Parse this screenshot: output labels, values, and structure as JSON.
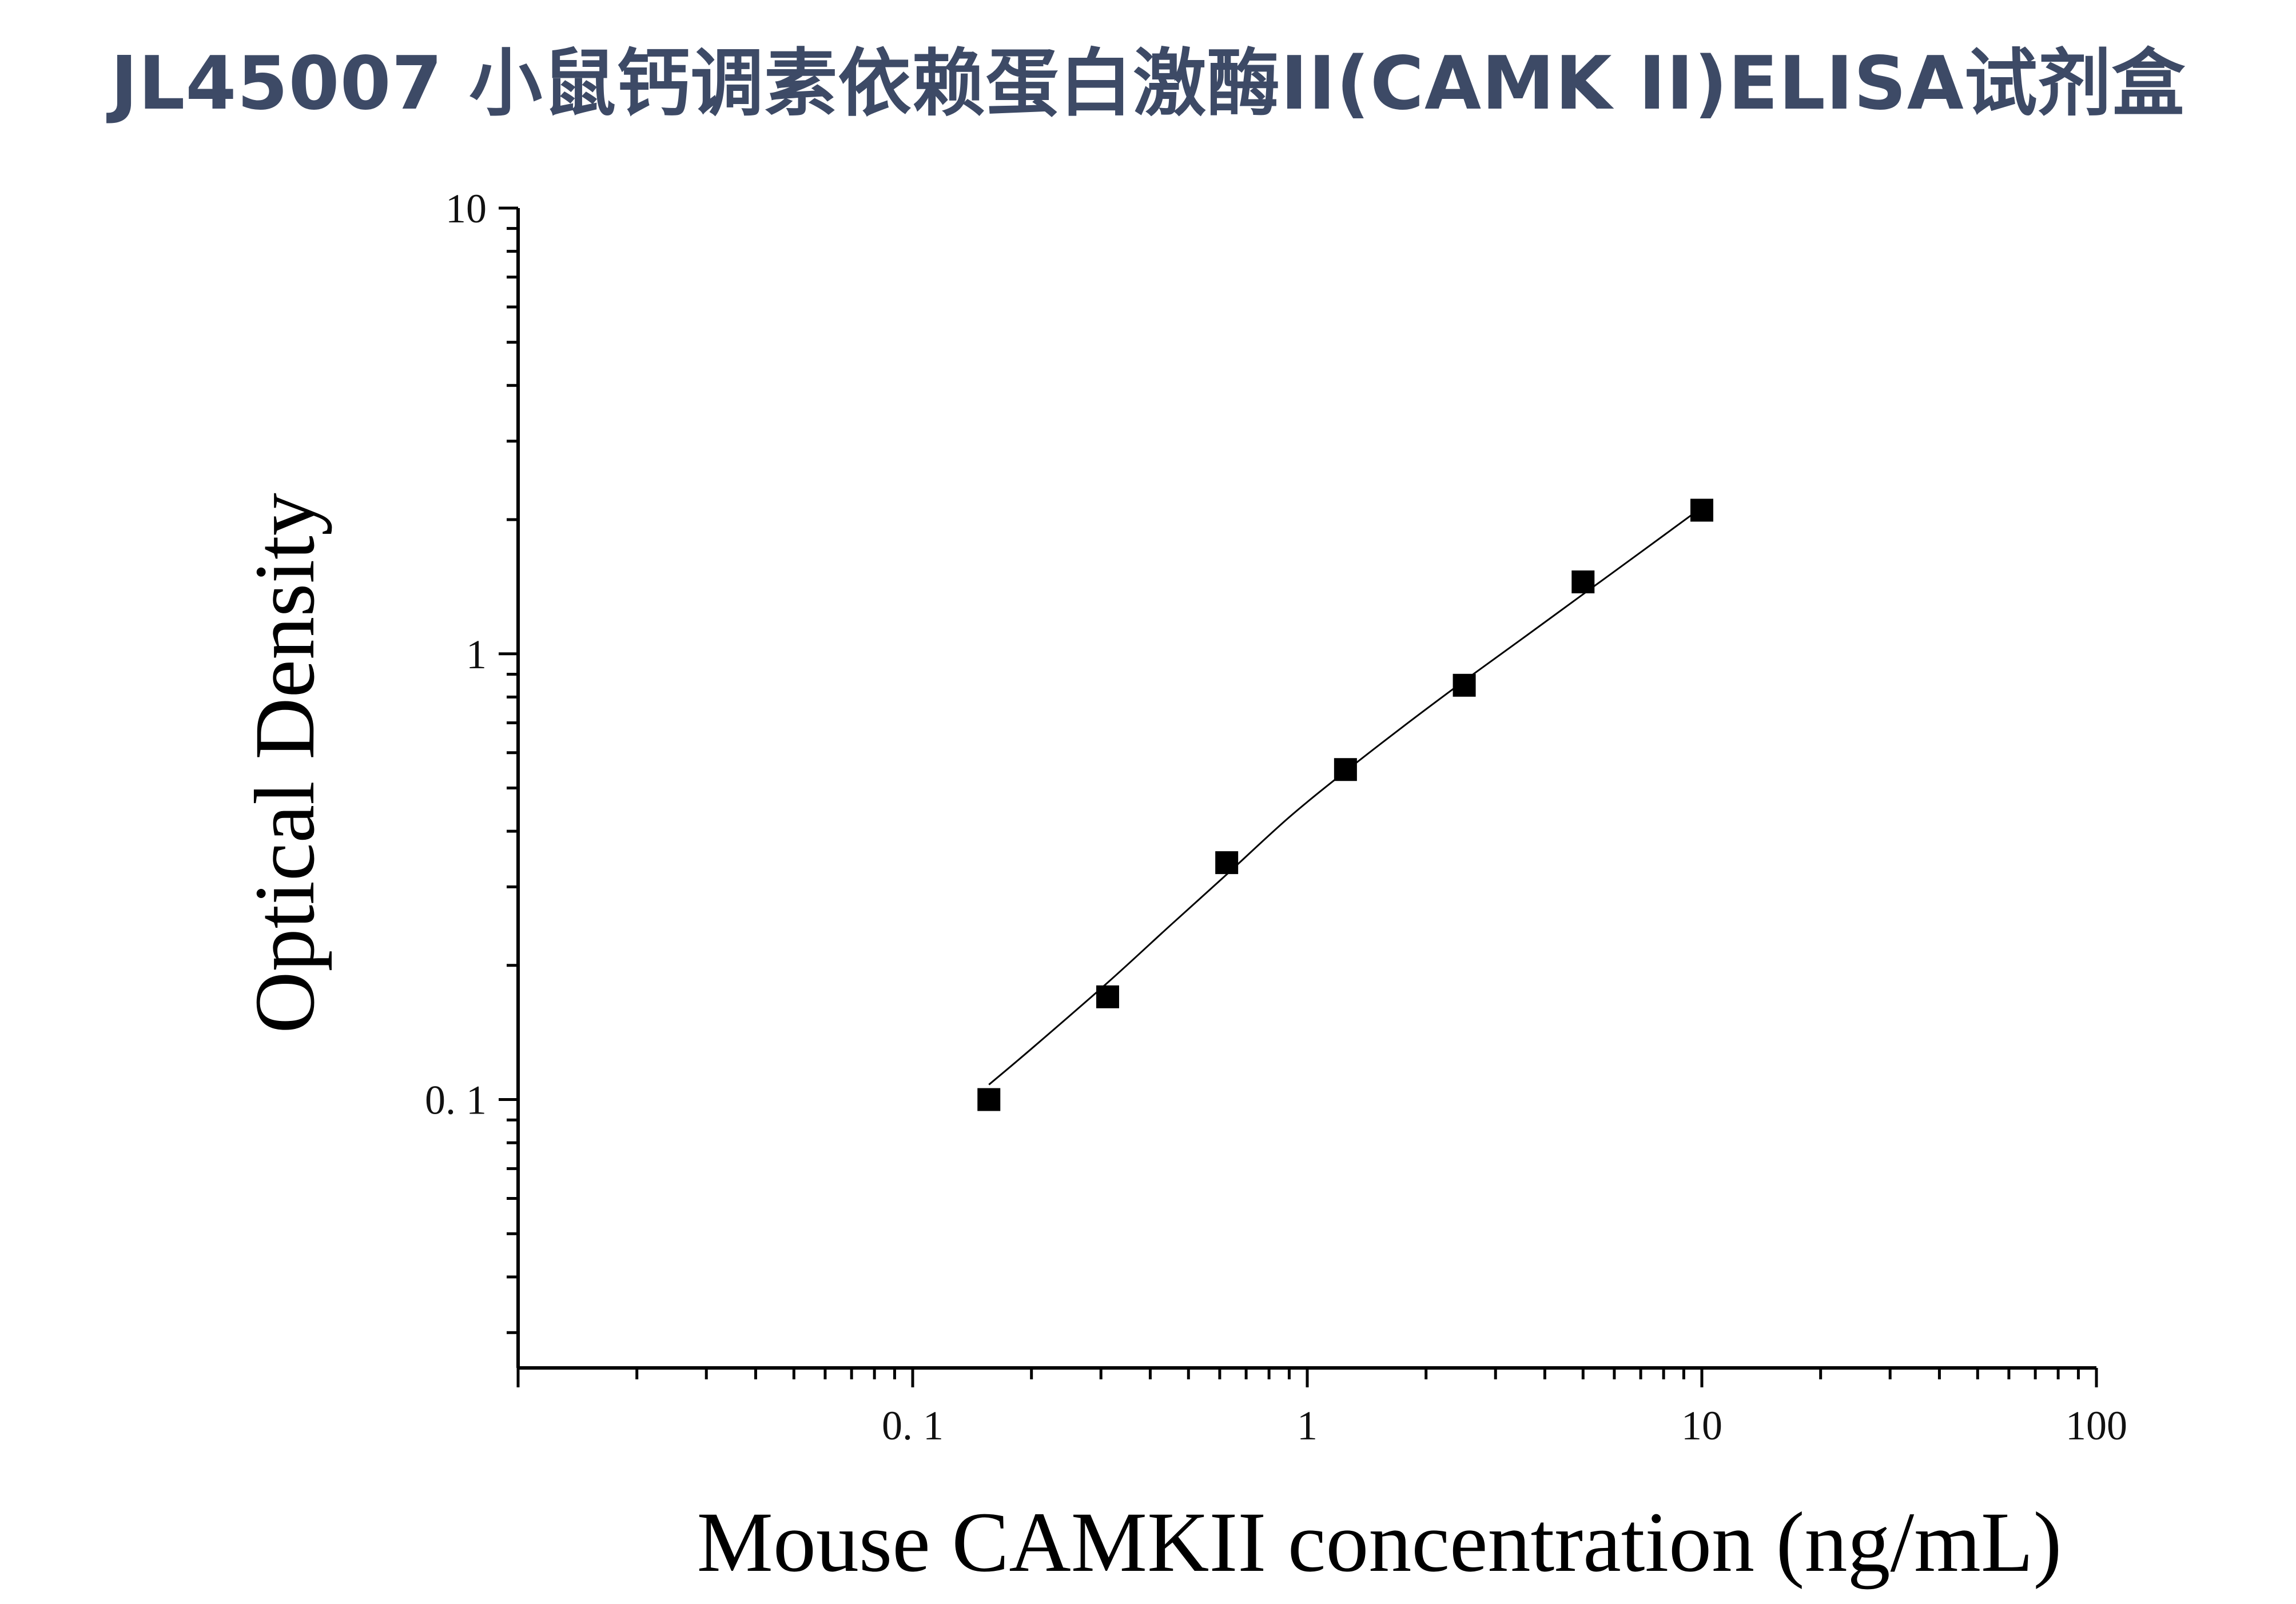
{
  "title": "JL45007 小鼠钙调素依赖蛋白激酶II(CAMK II)ELISA试剂盒",
  "chart_data": {
    "type": "scatter",
    "title": "JL45007 小鼠钙调素依赖蛋白激酶II(CAMK II)ELISA试剂盒",
    "xlabel": "Mouse CAMKII concentration (ng/mL)",
    "ylabel": "Optical Density",
    "x_scale": "log",
    "y_scale": "log",
    "xlim": [
      0.01,
      100
    ],
    "ylim": [
      0.025,
      10
    ],
    "x_ticks": [
      {
        "value": 0.1,
        "label": "0. 1"
      },
      {
        "value": 1,
        "label": "1"
      },
      {
        "value": 10,
        "label": "10"
      },
      {
        "value": 100,
        "label": "100"
      }
    ],
    "y_ticks": [
      {
        "value": 0.1,
        "label": "0. 1"
      },
      {
        "value": 1,
        "label": "1"
      },
      {
        "value": 10,
        "label": "10"
      }
    ],
    "grid": false,
    "series": [
      {
        "marker": "square",
        "color": "#000000",
        "x": [
          0.156,
          0.312,
          0.625,
          1.25,
          2.5,
          5,
          10
        ],
        "y": [
          0.1,
          0.17,
          0.34,
          0.55,
          0.85,
          1.45,
          2.1
        ]
      }
    ],
    "fit_curve": {
      "color": "#000000",
      "x": [
        0.156,
        0.2,
        0.312,
        0.45,
        0.625,
        0.9,
        1.25,
        1.8,
        2.5,
        3.5,
        5,
        7,
        10
      ],
      "y": [
        0.108,
        0.13,
        0.183,
        0.246,
        0.32,
        0.43,
        0.545,
        0.7,
        0.87,
        1.08,
        1.36,
        1.69,
        2.13
      ]
    }
  }
}
